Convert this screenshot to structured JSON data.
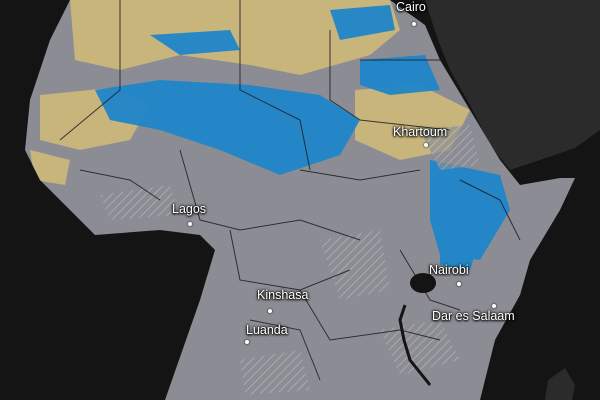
{
  "map": {
    "colors": {
      "ocean": "#141414",
      "foreign_land": "#2b2b2b",
      "land_base": "#8c8d94",
      "wet": "#1f86c9",
      "dry": "#c7b57c",
      "hatch": "#b6b6ba",
      "borders": "#1d1d22",
      "labels": "#ffffff"
    },
    "cities": [
      {
        "id": "cairo",
        "name": "Cairo"
      },
      {
        "id": "khartoum",
        "name": "Khartoum"
      },
      {
        "id": "lagos",
        "name": "Lagos"
      },
      {
        "id": "nairobi",
        "name": "Nairobi"
      },
      {
        "id": "kinshasa",
        "name": "Kinshasa"
      },
      {
        "id": "luanda",
        "name": "Luanda"
      },
      {
        "id": "dar-es-salaam",
        "name": "Dar es Salaam"
      }
    ]
  }
}
